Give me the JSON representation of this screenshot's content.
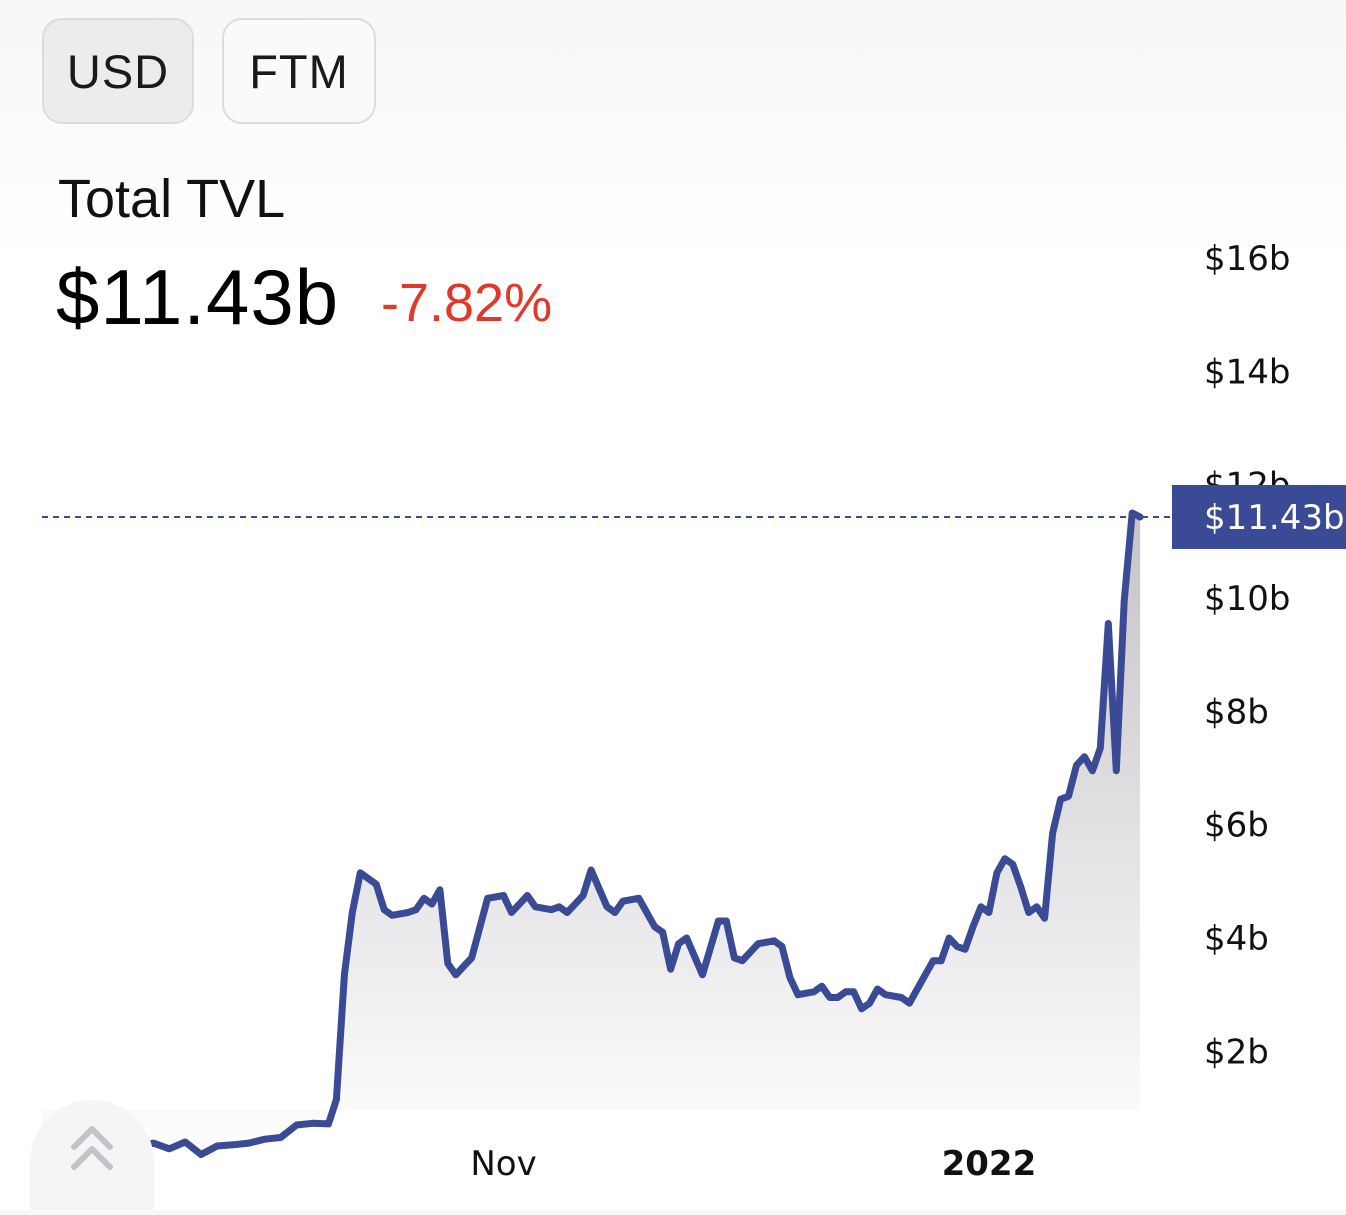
{
  "toggles": [
    {
      "label": "USD",
      "active": true
    },
    {
      "label": "FTM",
      "active": false
    }
  ],
  "header": {
    "title": "Total TVL",
    "value": "$11.43b",
    "change": "-7.82%",
    "change_color": "#e0392b"
  },
  "current_marker": {
    "label": "$11.43b",
    "value": 11.43,
    "color": "#3b4a94"
  },
  "icons": {
    "scroll_top": "double-chevron-up-icon"
  },
  "chart_data": {
    "type": "area",
    "ylim": [
      0,
      17
    ],
    "y_ticks": [
      2,
      4,
      6,
      8,
      10,
      12,
      14,
      16
    ],
    "y_tick_labels": [
      "$2b",
      "$4b",
      "$6b",
      "$8b",
      "$10b",
      "$12b",
      "$14b",
      "$16b"
    ],
    "x_tick_labels": [
      {
        "label": "Nov",
        "date": "2021-11-01",
        "bold": false
      },
      {
        "label": "2022",
        "date": "2022-01-01",
        "bold": true
      }
    ],
    "x_range": [
      "2021-09-04",
      "2022-01-23"
    ],
    "line_color": "#3b4a94",
    "fill_top": "#c6c3c8",
    "fill_bottom": "#ffffff",
    "series": [
      {
        "values": [
          {
            "x": "2021-09-04",
            "y": 0.05
          },
          {
            "x": "2021-09-06",
            "y": 0.38
          },
          {
            "x": "2021-09-08",
            "y": 0.45
          },
          {
            "x": "2021-09-10",
            "y": 0.52
          },
          {
            "x": "2021-09-12",
            "y": 0.45
          },
          {
            "x": "2021-09-14",
            "y": 0.4
          },
          {
            "x": "2021-09-16",
            "y": 0.3
          },
          {
            "x": "2021-09-18",
            "y": 0.38
          },
          {
            "x": "2021-09-20",
            "y": 0.28
          },
          {
            "x": "2021-09-22",
            "y": 0.4
          },
          {
            "x": "2021-09-24",
            "y": 0.18
          },
          {
            "x": "2021-09-26",
            "y": 0.33
          },
          {
            "x": "2021-09-28",
            "y": 0.35
          },
          {
            "x": "2021-09-30",
            "y": 0.38
          },
          {
            "x": "2021-10-02",
            "y": 0.45
          },
          {
            "x": "2021-10-04",
            "y": 0.48
          },
          {
            "x": "2021-10-06",
            "y": 0.7
          },
          {
            "x": "2021-10-08",
            "y": 0.73
          },
          {
            "x": "2021-10-10",
            "y": 0.72
          },
          {
            "x": "2021-10-11",
            "y": 1.15
          },
          {
            "x": "2021-10-12",
            "y": 3.35
          },
          {
            "x": "2021-10-13",
            "y": 4.45
          },
          {
            "x": "2021-10-14",
            "y": 5.15
          },
          {
            "x": "2021-10-16",
            "y": 4.95
          },
          {
            "x": "2021-10-17",
            "y": 4.5
          },
          {
            "x": "2021-10-18",
            "y": 4.4
          },
          {
            "x": "2021-10-20",
            "y": 4.45
          },
          {
            "x": "2021-10-21",
            "y": 4.5
          },
          {
            "x": "2021-10-22",
            "y": 4.7
          },
          {
            "x": "2021-10-23",
            "y": 4.6
          },
          {
            "x": "2021-10-24",
            "y": 4.85
          },
          {
            "x": "2021-10-25",
            "y": 3.55
          },
          {
            "x": "2021-10-26",
            "y": 3.35
          },
          {
            "x": "2021-10-28",
            "y": 3.65
          },
          {
            "x": "2021-10-30",
            "y": 4.7
          },
          {
            "x": "2021-11-01",
            "y": 4.75
          },
          {
            "x": "2021-11-02",
            "y": 4.45
          },
          {
            "x": "2021-11-04",
            "y": 4.75
          },
          {
            "x": "2021-11-05",
            "y": 4.55
          },
          {
            "x": "2021-11-07",
            "y": 4.5
          },
          {
            "x": "2021-11-08",
            "y": 4.55
          },
          {
            "x": "2021-11-09",
            "y": 4.45
          },
          {
            "x": "2021-11-11",
            "y": 4.75
          },
          {
            "x": "2021-11-12",
            "y": 5.2
          },
          {
            "x": "2021-11-14",
            "y": 4.55
          },
          {
            "x": "2021-11-15",
            "y": 4.45
          },
          {
            "x": "2021-11-16",
            "y": 4.65
          },
          {
            "x": "2021-11-18",
            "y": 4.7
          },
          {
            "x": "2021-11-20",
            "y": 4.2
          },
          {
            "x": "2021-11-21",
            "y": 4.1
          },
          {
            "x": "2021-11-22",
            "y": 3.45
          },
          {
            "x": "2021-11-23",
            "y": 3.9
          },
          {
            "x": "2021-11-24",
            "y": 4.0
          },
          {
            "x": "2021-11-26",
            "y": 3.35
          },
          {
            "x": "2021-11-28",
            "y": 4.3
          },
          {
            "x": "2021-11-29",
            "y": 4.3
          },
          {
            "x": "2021-11-30",
            "y": 3.65
          },
          {
            "x": "2021-12-01",
            "y": 3.6
          },
          {
            "x": "2021-12-03",
            "y": 3.9
          },
          {
            "x": "2021-12-05",
            "y": 3.95
          },
          {
            "x": "2021-12-06",
            "y": 3.85
          },
          {
            "x": "2021-12-07",
            "y": 3.3
          },
          {
            "x": "2021-12-08",
            "y": 3.0
          },
          {
            "x": "2021-12-10",
            "y": 3.05
          },
          {
            "x": "2021-12-11",
            "y": 3.15
          },
          {
            "x": "2021-12-12",
            "y": 2.95
          },
          {
            "x": "2021-12-13",
            "y": 2.95
          },
          {
            "x": "2021-12-14",
            "y": 3.05
          },
          {
            "x": "2021-12-15",
            "y": 3.05
          },
          {
            "x": "2021-12-16",
            "y": 2.75
          },
          {
            "x": "2021-12-17",
            "y": 2.85
          },
          {
            "x": "2021-12-18",
            "y": 3.1
          },
          {
            "x": "2021-12-19",
            "y": 3.0
          },
          {
            "x": "2021-12-21",
            "y": 2.95
          },
          {
            "x": "2021-12-22",
            "y": 2.85
          },
          {
            "x": "2021-12-23",
            "y": 3.1
          },
          {
            "x": "2021-12-25",
            "y": 3.6
          },
          {
            "x": "2021-12-26",
            "y": 3.6
          },
          {
            "x": "2021-12-27",
            "y": 4.0
          },
          {
            "x": "2021-12-28",
            "y": 3.85
          },
          {
            "x": "2021-12-29",
            "y": 3.8
          },
          {
            "x": "2021-12-30",
            "y": 4.2
          },
          {
            "x": "2021-12-31",
            "y": 4.55
          },
          {
            "x": "2022-01-01",
            "y": 4.45
          },
          {
            "x": "2022-01-02",
            "y": 5.15
          },
          {
            "x": "2022-01-03",
            "y": 5.4
          },
          {
            "x": "2022-01-04",
            "y": 5.3
          },
          {
            "x": "2022-01-05",
            "y": 4.9
          },
          {
            "x": "2022-01-06",
            "y": 4.45
          },
          {
            "x": "2022-01-07",
            "y": 4.55
          },
          {
            "x": "2022-01-08",
            "y": 4.35
          },
          {
            "x": "2022-01-09",
            "y": 5.85
          },
          {
            "x": "2022-01-10",
            "y": 6.45
          },
          {
            "x": "2022-01-11",
            "y": 6.5
          },
          {
            "x": "2022-01-12",
            "y": 7.05
          },
          {
            "x": "2022-01-13",
            "y": 7.2
          },
          {
            "x": "2022-01-14",
            "y": 6.95
          },
          {
            "x": "2022-01-15",
            "y": 7.35
          },
          {
            "x": "2022-01-16",
            "y": 9.55
          },
          {
            "x": "2022-01-17",
            "y": 6.95
          },
          {
            "x": "2022-01-18",
            "y": 9.95
          },
          {
            "x": "2022-01-19",
            "y": 11.5
          },
          {
            "x": "2022-01-20",
            "y": 11.43
          }
        ]
      }
    ]
  }
}
